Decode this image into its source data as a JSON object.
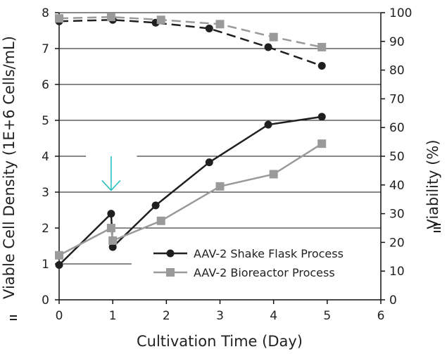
{
  "chart_data": {
    "type": "line",
    "title": "",
    "xlabel": "Cultivation Time (Day)",
    "ylabel": "Viable Cell Density (1E+6 Cells/mL)",
    "y2label": "Viability (%)",
    "xlim": [
      0,
      6
    ],
    "ylim": [
      0,
      8
    ],
    "y2lim": [
      0,
      100
    ],
    "x_ticks": [
      "0",
      "1",
      "2",
      "3",
      "4",
      "5",
      "6"
    ],
    "y_ticks": [
      "0",
      "1",
      "2",
      "3",
      "4",
      "5",
      "6",
      "7",
      "8"
    ],
    "y2_ticks": [
      "0",
      "10",
      "20",
      "30",
      "40",
      "50",
      "60",
      "70",
      "80",
      "90",
      "100"
    ],
    "grid": "horizontal",
    "legend_position": "lower-right",
    "colors": {
      "shake_flask": "#1f1f1f",
      "bioreactor": "#9a9a9a",
      "arrow": "#2ebfbf"
    },
    "series": [
      {
        "name": "AAV-2 Shake Flask Process",
        "axis": "left",
        "marker": "circle",
        "line": "solid",
        "x": [
          0,
          0.97,
          1.0,
          1.8,
          2.8,
          3.9,
          4.9
        ],
        "y": [
          0.97,
          2.4,
          1.47,
          2.63,
          3.83,
          4.88,
          5.1
        ]
      },
      {
        "name": "AAV-2 Bioreactor Process",
        "axis": "left",
        "marker": "square",
        "line": "solid",
        "x": [
          0,
          0.97,
          1.0,
          1.9,
          3.0,
          4.0,
          4.9
        ],
        "y": [
          1.24,
          2.0,
          1.65,
          2.2,
          3.16,
          3.5,
          4.35
        ]
      },
      {
        "name": "",
        "axis": "right",
        "marker": "circle",
        "line": "dashed",
        "x": [
          0,
          1.0,
          1.8,
          2.8,
          3.9,
          4.9
        ],
        "y": [
          97,
          97.5,
          96.5,
          94.5,
          88,
          81.5
        ]
      },
      {
        "name": "",
        "axis": "right",
        "marker": "square",
        "line": "dashed",
        "x": [
          0,
          0.97,
          1.9,
          3.0,
          4.0,
          4.9
        ],
        "y": [
          98,
          98.5,
          97.5,
          96,
          91.5,
          88
        ]
      }
    ],
    "annotations": [
      {
        "type": "arrow-down",
        "x": 0.97,
        "y_from": 4.0,
        "y_to": 3.05
      }
    ]
  }
}
